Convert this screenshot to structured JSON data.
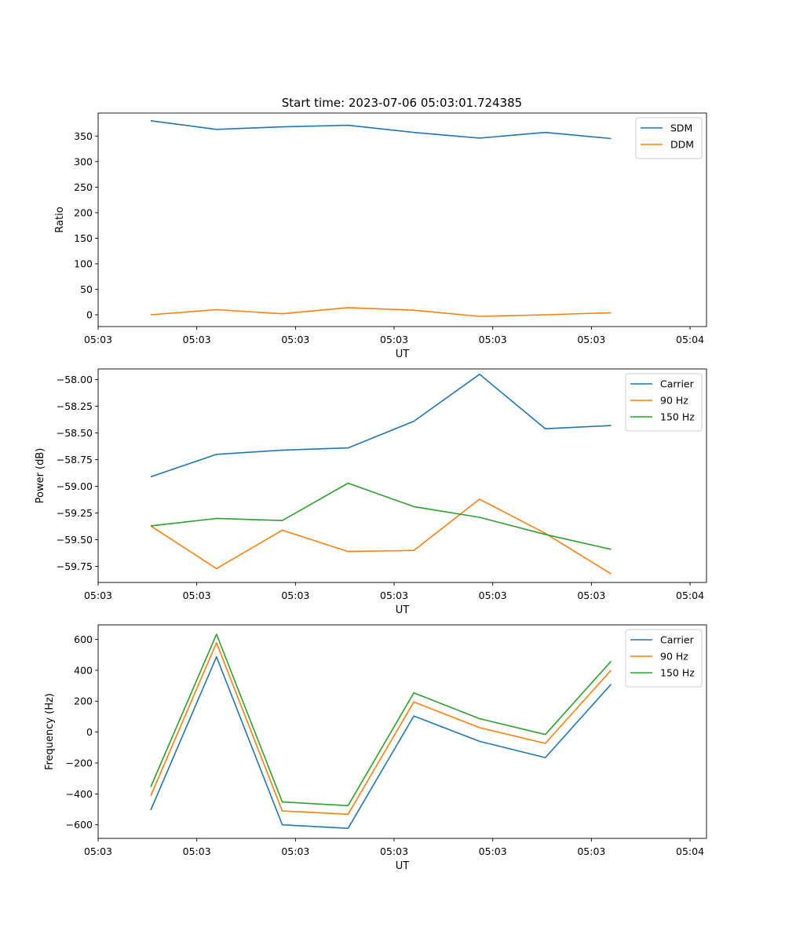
{
  "figure_title": "Start time: 2023-07-06 05:03:01.724385",
  "colors": {
    "c0": "#1f77b4",
    "c1": "#ff7f0e",
    "c2": "#2ca02c"
  },
  "chart_data": [
    {
      "type": "line",
      "title": "Start time: 2023-07-06 05:03:01.724385",
      "xlabel": "UT",
      "ylabel": "Ratio",
      "x": [
        1,
        2,
        3,
        4,
        5,
        6,
        7,
        8
      ],
      "xlim": [
        0.2,
        9.45
      ],
      "xticks": [
        0.2,
        1.7,
        3.2,
        4.7,
        6.2,
        7.7,
        9.2
      ],
      "xtick_labels": [
        "05:03",
        "05:03",
        "05:03",
        "05:03",
        "05:03",
        "05:03",
        "05:04"
      ],
      "ylim": [
        -23,
        395
      ],
      "yticks": [
        0,
        50,
        100,
        150,
        200,
        250,
        300,
        350
      ],
      "ytick_labels": [
        "0",
        "50",
        "100",
        "150",
        "200",
        "250",
        "300",
        "350"
      ],
      "legend_position": "top-right",
      "series": [
        {
          "name": "SDM",
          "color": "#1f77b4",
          "values": [
            380,
            363,
            368,
            371,
            357,
            346,
            357,
            345
          ]
        },
        {
          "name": "DDM",
          "color": "#ff7f0e",
          "values": [
            0,
            10,
            2,
            14,
            9,
            -3,
            0,
            4
          ]
        }
      ]
    },
    {
      "type": "line",
      "title": "",
      "xlabel": "UT",
      "ylabel": "Power (dB)",
      "x": [
        1,
        2,
        3,
        4,
        5,
        6,
        7,
        8
      ],
      "xlim": [
        0.2,
        9.45
      ],
      "xticks": [
        0.2,
        1.7,
        3.2,
        4.7,
        6.2,
        7.7,
        9.2
      ],
      "xtick_labels": [
        "05:03",
        "05:03",
        "05:03",
        "05:03",
        "05:03",
        "05:03",
        "05:04"
      ],
      "ylim": [
        -59.9,
        -57.9
      ],
      "yticks": [
        -58.0,
        -58.25,
        -58.5,
        -58.75,
        -59.0,
        -59.25,
        -59.5,
        -59.75
      ],
      "ytick_labels": [
        "−58.00",
        "−58.25",
        "−58.50",
        "−58.75",
        "−59.00",
        "−59.25",
        "−59.50",
        "−59.75"
      ],
      "legend_position": "top-right",
      "series": [
        {
          "name": "Carrier",
          "color": "#1f77b4",
          "values": [
            -58.91,
            -58.7,
            -58.66,
            -58.64,
            -58.39,
            -57.95,
            -58.46,
            -58.43
          ]
        },
        {
          "name": "90 Hz",
          "color": "#ff7f0e",
          "values": [
            -59.37,
            -59.77,
            -59.41,
            -59.61,
            -59.6,
            -59.12,
            -59.44,
            -59.82
          ]
        },
        {
          "name": "150 Hz",
          "color": "#2ca02c",
          "values": [
            -59.37,
            -59.3,
            -59.32,
            -58.97,
            -59.19,
            -59.29,
            -59.45,
            -59.59
          ]
        }
      ]
    },
    {
      "type": "line",
      "title": "",
      "xlabel": "UT",
      "ylabel": "Frequency (Hz)",
      "x": [
        1,
        2,
        3,
        4,
        5,
        6,
        7,
        8
      ],
      "xlim": [
        0.2,
        9.45
      ],
      "xticks": [
        0.2,
        1.7,
        3.2,
        4.7,
        6.2,
        7.7,
        9.2
      ],
      "xtick_labels": [
        "05:03",
        "05:03",
        "05:03",
        "05:03",
        "05:03",
        "05:03",
        "05:04"
      ],
      "ylim": [
        -688,
        694
      ],
      "yticks": [
        -600,
        -400,
        -200,
        0,
        200,
        400,
        600
      ],
      "ytick_labels": [
        "−600",
        "−400",
        "−200",
        "0",
        "200",
        "400",
        "600"
      ],
      "legend_position": "top-right",
      "series": [
        {
          "name": "Carrier",
          "color": "#1f77b4",
          "values": [
            -505,
            487,
            -600,
            -623,
            104,
            -60,
            -165,
            310
          ]
        },
        {
          "name": "90 Hz",
          "color": "#ff7f0e",
          "values": [
            -413,
            578,
            -510,
            -532,
            195,
            29,
            -73,
            401
          ]
        },
        {
          "name": "150 Hz",
          "color": "#2ca02c",
          "values": [
            -355,
            633,
            -452,
            -476,
            254,
            87,
            -16,
            459
          ]
        }
      ]
    }
  ]
}
